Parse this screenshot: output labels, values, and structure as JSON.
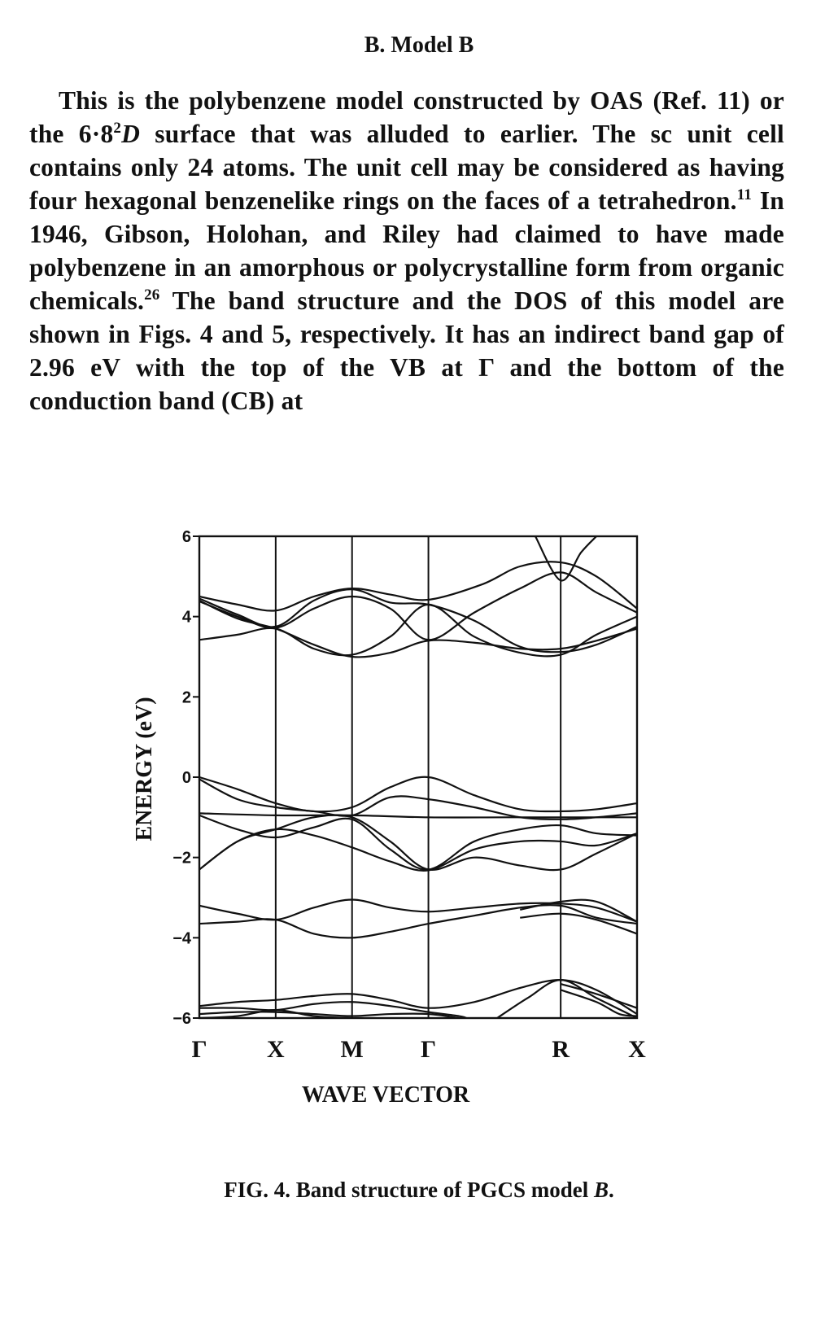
{
  "section": {
    "heading": "B. Model B"
  },
  "paragraph": {
    "part1": "This is the polybenzene model constructed by OAS (Ref. 11) or the 6·8",
    "sup1": "2",
    "part2": "D",
    "part3": " surface that was alluded to earlier. The sc unit cell contains only 24 atoms. The unit cell may be considered as having four hexagonal benzenelike rings on the faces of a tetrahedron.",
    "sup2": "11",
    "part4": " In 1946, Gibson, Holohan, and Riley had claimed to have made polybenzene in an amorphous or polycrystalline form from organic chemicals.",
    "sup3": "26",
    "part5": " The band structure and the DOS of this model are shown in Figs. 4 and 5, respectively. It has an indirect band gap of 2.96 eV with the top of the VB at Γ and the bottom of the conduction band (CB) at"
  },
  "figure": {
    "caption_prefix": "FIG. 4.  Band structure of PGCS model ",
    "caption_model": "B",
    "caption_end": "."
  },
  "chart_data": {
    "type": "line",
    "title": "",
    "xlabel": "WAVE VECTOR",
    "ylabel": "ENERGY (eV)",
    "ylim": [
      -6,
      6
    ],
    "yticks": [
      6,
      4,
      2,
      0,
      -2,
      -4,
      -6
    ],
    "ytick_labels": [
      "6",
      "4",
      "2",
      "0",
      "−2",
      "−4",
      "−6"
    ],
    "k_points": [
      "Γ",
      "X",
      "M",
      "Γ",
      "R",
      "X"
    ],
    "k_positions": [
      0,
      0.5,
      1.0,
      1.5,
      2.366,
      2.866
    ],
    "grid": false,
    "series": [
      {
        "values": [
          [
            0,
            4.5
          ],
          [
            0.25,
            4.3
          ],
          [
            0.5,
            4.15
          ],
          [
            0.75,
            4.5
          ],
          [
            1.0,
            4.7
          ],
          [
            1.25,
            4.55
          ],
          [
            1.5,
            4.42
          ],
          [
            1.85,
            4.8
          ],
          [
            2.1,
            5.25
          ],
          [
            2.366,
            5.35
          ],
          [
            2.6,
            5.0
          ],
          [
            2.866,
            4.2
          ]
        ]
      },
      {
        "values": [
          [
            0,
            4.45
          ],
          [
            0.25,
            4.05
          ],
          [
            0.5,
            3.75
          ],
          [
            0.75,
            4.4
          ],
          [
            1.0,
            4.68
          ],
          [
            1.25,
            4.35
          ],
          [
            1.5,
            4.3
          ],
          [
            1.8,
            3.9
          ],
          [
            2.1,
            3.25
          ],
          [
            2.366,
            3.12
          ],
          [
            2.6,
            3.3
          ],
          [
            2.866,
            3.75
          ]
        ]
      },
      {
        "values": [
          [
            0,
            4.4
          ],
          [
            0.25,
            3.95
          ],
          [
            0.5,
            3.7
          ],
          [
            0.75,
            3.3
          ],
          [
            1.0,
            3.0
          ],
          [
            1.25,
            3.1
          ],
          [
            1.5,
            3.4
          ],
          [
            1.8,
            3.35
          ],
          [
            2.1,
            3.2
          ],
          [
            2.366,
            3.2
          ],
          [
            2.6,
            3.4
          ],
          [
            2.866,
            3.7
          ]
        ]
      },
      {
        "values": [
          [
            0,
            3.42
          ],
          [
            0.25,
            3.55
          ],
          [
            0.5,
            3.7
          ],
          [
            0.75,
            3.2
          ],
          [
            1.0,
            3.05
          ],
          [
            1.25,
            3.5
          ],
          [
            1.5,
            4.3
          ],
          [
            1.8,
            3.5
          ],
          [
            2.1,
            3.1
          ],
          [
            2.366,
            3.05
          ],
          [
            2.6,
            3.55
          ],
          [
            2.866,
            4.0
          ]
        ]
      },
      {
        "values": [
          [
            0,
            4.38
          ],
          [
            0.25,
            4.0
          ],
          [
            0.5,
            3.72
          ],
          [
            0.75,
            4.2
          ],
          [
            1.0,
            4.5
          ],
          [
            1.25,
            4.2
          ],
          [
            1.5,
            3.42
          ],
          [
            1.8,
            4.1
          ],
          [
            2.1,
            4.7
          ],
          [
            2.366,
            5.1
          ],
          [
            2.6,
            4.6
          ],
          [
            2.866,
            4.1
          ]
        ]
      },
      {
        "values": [
          [
            2.2,
            6.0
          ],
          [
            2.366,
            4.9
          ],
          [
            2.5,
            5.6
          ],
          [
            2.6,
            6.0
          ]
        ]
      },
      {
        "values": [
          [
            0,
            0.0
          ],
          [
            0.25,
            -0.3
          ],
          [
            0.5,
            -0.65
          ],
          [
            0.75,
            -0.85
          ],
          [
            1.0,
            -0.75
          ],
          [
            1.25,
            -0.25
          ],
          [
            1.5,
            0.0
          ],
          [
            1.8,
            -0.45
          ],
          [
            2.1,
            -0.8
          ],
          [
            2.366,
            -0.85
          ],
          [
            2.6,
            -0.8
          ],
          [
            2.866,
            -0.65
          ]
        ]
      },
      {
        "values": [
          [
            0,
            -0.05
          ],
          [
            0.25,
            -0.55
          ],
          [
            0.5,
            -0.75
          ],
          [
            0.75,
            -0.85
          ],
          [
            1.0,
            -0.95
          ],
          [
            1.25,
            -0.5
          ],
          [
            1.5,
            -0.55
          ],
          [
            1.8,
            -0.75
          ],
          [
            2.1,
            -1.0
          ],
          [
            2.366,
            -1.05
          ],
          [
            2.6,
            -1.0
          ],
          [
            2.866,
            -0.9
          ]
        ]
      },
      {
        "values": [
          [
            0,
            -0.9
          ],
          [
            0.5,
            -0.95
          ],
          [
            1.0,
            -0.95
          ],
          [
            1.5,
            -1.0
          ],
          [
            2.0,
            -1.0
          ],
          [
            2.366,
            -1.0
          ],
          [
            2.866,
            -1.0
          ]
        ]
      },
      {
        "values": [
          [
            0,
            -0.95
          ],
          [
            0.25,
            -1.3
          ],
          [
            0.5,
            -1.5
          ],
          [
            0.75,
            -1.25
          ],
          [
            1.0,
            -1.05
          ],
          [
            1.25,
            -1.8
          ],
          [
            1.5,
            -2.3
          ],
          [
            1.8,
            -1.6
          ],
          [
            2.1,
            -1.3
          ],
          [
            2.366,
            -1.2
          ],
          [
            2.6,
            -1.4
          ],
          [
            2.866,
            -1.45
          ]
        ]
      },
      {
        "values": [
          [
            0,
            -2.3
          ],
          [
            0.25,
            -1.6
          ],
          [
            0.5,
            -1.3
          ],
          [
            0.75,
            -1.45
          ],
          [
            1.0,
            -1.75
          ],
          [
            1.25,
            -2.1
          ],
          [
            1.5,
            -2.32
          ],
          [
            1.8,
            -1.8
          ],
          [
            2.1,
            -1.6
          ],
          [
            2.366,
            -1.6
          ],
          [
            2.6,
            -1.7
          ],
          [
            2.866,
            -1.4
          ]
        ]
      },
      {
        "values": [
          [
            0,
            -2.3
          ],
          [
            0.25,
            -1.6
          ],
          [
            0.5,
            -1.3
          ],
          [
            0.75,
            -1.0
          ],
          [
            1.0,
            -1.0
          ],
          [
            1.25,
            -1.6
          ],
          [
            1.5,
            -2.3
          ],
          [
            1.8,
            -2.0
          ],
          [
            2.1,
            -2.2
          ],
          [
            2.366,
            -2.3
          ],
          [
            2.6,
            -1.9
          ],
          [
            2.866,
            -1.4
          ]
        ]
      },
      {
        "values": [
          [
            0,
            -3.2
          ],
          [
            0.25,
            -3.4
          ],
          [
            0.5,
            -3.55
          ],
          [
            0.75,
            -3.25
          ],
          [
            1.0,
            -3.05
          ],
          [
            1.25,
            -3.25
          ],
          [
            1.5,
            -3.35
          ],
          [
            1.8,
            -3.25
          ],
          [
            2.1,
            -3.15
          ],
          [
            2.366,
            -3.15
          ],
          [
            2.6,
            -3.25
          ],
          [
            2.866,
            -3.6
          ]
        ]
      },
      {
        "values": [
          [
            0,
            -3.65
          ],
          [
            0.25,
            -3.6
          ],
          [
            0.5,
            -3.55
          ],
          [
            0.75,
            -3.9
          ],
          [
            1.0,
            -4.0
          ],
          [
            1.25,
            -3.85
          ],
          [
            1.5,
            -3.65
          ],
          [
            1.8,
            -3.45
          ],
          [
            2.1,
            -3.25
          ],
          [
            2.366,
            -3.2
          ],
          [
            2.6,
            -3.5
          ],
          [
            2.866,
            -3.65
          ]
        ]
      },
      {
        "values": [
          [
            2.1,
            -3.3
          ],
          [
            2.366,
            -3.1
          ],
          [
            2.6,
            -3.1
          ],
          [
            2.866,
            -3.6
          ]
        ]
      },
      {
        "values": [
          [
            2.1,
            -3.5
          ],
          [
            2.366,
            -3.4
          ],
          [
            2.6,
            -3.55
          ],
          [
            2.866,
            -3.9
          ]
        ]
      },
      {
        "values": [
          [
            0,
            -5.7
          ],
          [
            0.25,
            -5.6
          ],
          [
            0.5,
            -5.55
          ],
          [
            0.75,
            -5.45
          ],
          [
            1.0,
            -5.4
          ],
          [
            1.25,
            -5.55
          ],
          [
            1.5,
            -5.75
          ],
          [
            1.8,
            -5.6
          ],
          [
            2.1,
            -5.25
          ],
          [
            2.366,
            -5.05
          ],
          [
            2.6,
            -5.3
          ],
          [
            2.866,
            -5.9
          ]
        ]
      },
      {
        "values": [
          [
            0,
            -5.75
          ],
          [
            0.25,
            -5.75
          ],
          [
            0.5,
            -5.8
          ],
          [
            0.75,
            -5.65
          ],
          [
            1.0,
            -5.6
          ],
          [
            1.25,
            -5.7
          ],
          [
            1.5,
            -5.85
          ],
          [
            1.7,
            -5.95
          ],
          [
            1.75,
            -6.0
          ]
        ]
      },
      {
        "values": [
          [
            0,
            -5.9
          ],
          [
            0.25,
            -5.85
          ],
          [
            0.5,
            -5.85
          ],
          [
            0.75,
            -5.9
          ],
          [
            1.0,
            -5.95
          ],
          [
            1.25,
            -5.9
          ],
          [
            1.5,
            -5.9
          ],
          [
            1.7,
            -6.0
          ]
        ]
      },
      {
        "values": [
          [
            0,
            -6.0
          ],
          [
            0.25,
            -5.95
          ],
          [
            0.5,
            -5.8
          ],
          [
            0.75,
            -5.95
          ],
          [
            1.0,
            -6.0
          ]
        ]
      },
      {
        "values": [
          [
            1.95,
            -6.0
          ],
          [
            2.15,
            -5.5
          ],
          [
            2.366,
            -5.05
          ],
          [
            2.6,
            -5.5
          ],
          [
            2.866,
            -6.0
          ]
        ]
      },
      {
        "values": [
          [
            2.366,
            -5.3
          ],
          [
            2.6,
            -5.6
          ],
          [
            2.75,
            -5.9
          ],
          [
            2.866,
            -5.95
          ]
        ]
      },
      {
        "values": [
          [
            2.366,
            -5.15
          ],
          [
            2.6,
            -5.4
          ],
          [
            2.866,
            -5.75
          ]
        ]
      }
    ]
  }
}
